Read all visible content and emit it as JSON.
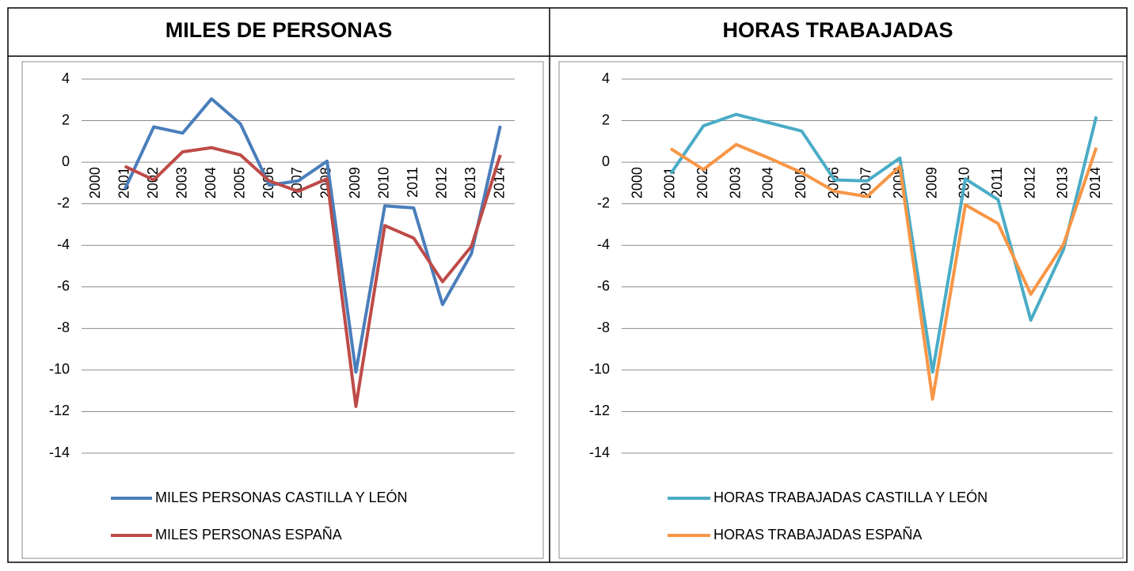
{
  "chart_data": [
    {
      "type": "line",
      "title": "MILES DE PERSONAS",
      "categories": [
        "2000",
        "2001",
        "2002",
        "2003",
        "2004",
        "2005",
        "2006",
        "2007",
        "2008",
        "2009",
        "2010",
        "2011",
        "2012",
        "2013",
        "2014"
      ],
      "ylim": [
        -14,
        4
      ],
      "yticks": [
        4,
        2,
        0,
        -2,
        -4,
        -6,
        -8,
        -10,
        -12,
        -14
      ],
      "grid": true,
      "legend": "bottom",
      "series": [
        {
          "name": "MILES PERSONAS CASTILLA Y LEÓN",
          "color": "#4a7ebb",
          "values": [
            null,
            -1.3,
            1.7,
            1.4,
            3.05,
            1.85,
            -1.1,
            -0.9,
            0.05,
            -10.1,
            -2.1,
            -2.2,
            -6.85,
            -4.4,
            1.75
          ]
        },
        {
          "name": "MILES PERSONAS ESPAÑA",
          "color": "#be4b48",
          "values": [
            null,
            -0.2,
            -0.85,
            0.5,
            0.7,
            0.35,
            -0.9,
            -1.4,
            -0.8,
            -11.75,
            -3.05,
            -3.65,
            -5.75,
            -4.05,
            0.35
          ]
        }
      ]
    },
    {
      "type": "line",
      "title": "HORAS TRABAJADAS",
      "categories": [
        "2000",
        "2001",
        "2002",
        "2003",
        "2004",
        "2005",
        "2006",
        "2007",
        "2008",
        "2009",
        "2010",
        "2011",
        "2012",
        "2013",
        "2014"
      ],
      "ylim": [
        -14,
        4
      ],
      "yticks": [
        4,
        2,
        0,
        -2,
        -4,
        -6,
        -8,
        -10,
        -12,
        -14
      ],
      "grid": true,
      "legend": "bottom",
      "series": [
        {
          "name": "HORAS TRABAJADAS CASTILLA Y LEÓN",
          "color": "#4aacc6",
          "values": [
            null,
            -0.55,
            1.75,
            2.3,
            1.9,
            1.5,
            -0.85,
            -0.9,
            0.2,
            -10.1,
            -0.8,
            -1.8,
            -7.6,
            -4.2,
            2.2
          ]
        },
        {
          "name": "HORAS TRABAJADAS ESPAÑA",
          "color": "#f79646",
          "values": [
            null,
            0.65,
            -0.35,
            0.85,
            0.2,
            -0.5,
            -1.4,
            -1.65,
            -0.2,
            -11.4,
            -2.05,
            -2.95,
            -6.35,
            -3.95,
            0.7
          ]
        }
      ]
    }
  ]
}
